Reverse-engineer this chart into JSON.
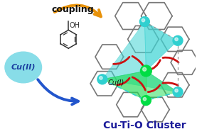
{
  "title": "Cu-Ti-O Cluster",
  "label_cu2": "Cu(II)",
  "label_cu1": "Cu(I)",
  "label_coupling": "coupling",
  "label_oh": "OH",
  "bg_color": "#ffffff",
  "cu2_circle_color": "#88dde8",
  "cu2_text_color": "#1a3fa0",
  "coupling_text_color": "#111111",
  "arrow_orange_color": "#e8920a",
  "arrow_blue_color": "#2255cc",
  "teal_color": "#30d0d0",
  "teal_face_color": "#40d4d4",
  "green_color": "#00dd44",
  "green_face_color": "#22dd55",
  "red_color": "#cc1111",
  "gray_color": "#777777",
  "title_color": "#1a1a99",
  "title_fontsize": 10,
  "coupling_fontsize": 9,
  "cu1_fontsize": 7,
  "cu2_fontsize": 8,
  "oh_fontsize": 7,
  "hex_color": "#777777",
  "hex_lw": 1.2,
  "teal_alpha": 0.72,
  "green_alpha": 0.65
}
